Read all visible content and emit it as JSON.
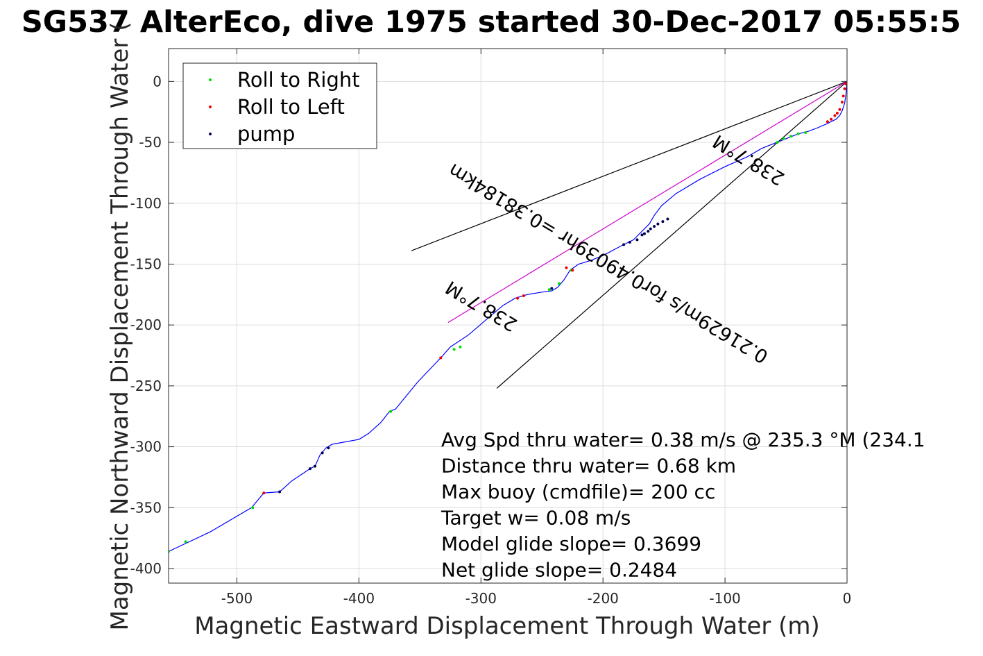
{
  "chart_data": {
    "type": "scatter",
    "title": "SG537 AlterEco, dive 1975 started 30-Dec-2017 05:55:5",
    "xlabel": "Magnetic Eastward Displacement Through Water (m)",
    "ylabel": "Magnetic Northward Displacement Through Water (",
    "xlim": [
      -556,
      0
    ],
    "ylim": [
      -412,
      27
    ],
    "grid": true,
    "x_ticks": [
      -500,
      -400,
      -300,
      -200,
      -100,
      0
    ],
    "y_ticks": [
      0,
      -50,
      -100,
      -150,
      -200,
      -250,
      -300,
      -350,
      -400
    ],
    "legend": {
      "placement": "top-left",
      "entries": [
        {
          "label": "Roll to Right",
          "color": "#00dd00"
        },
        {
          "label": "Roll to Left",
          "color": "#ee0000"
        },
        {
          "label": "pump",
          "color": "#000055"
        }
      ]
    },
    "track": {
      "color": "#0000ff",
      "points": [
        [
          0,
          0
        ],
        [
          -0.5,
          -6
        ],
        [
          -1,
          -12
        ],
        [
          -2,
          -18
        ],
        [
          -4,
          -24
        ],
        [
          -6,
          -28
        ],
        [
          -9,
          -31
        ],
        [
          -13,
          -33
        ],
        [
          -17,
          -35
        ],
        [
          -24,
          -38
        ],
        [
          -32,
          -41
        ],
        [
          -40,
          -43
        ],
        [
          -50,
          -47
        ],
        [
          -60,
          -51
        ],
        [
          -70,
          -55
        ],
        [
          -82,
          -62
        ],
        [
          -100,
          -70
        ],
        [
          -120,
          -80
        ],
        [
          -140,
          -92
        ],
        [
          -152,
          -102
        ],
        [
          -158,
          -110
        ],
        [
          -162,
          -117
        ],
        [
          -166,
          -121
        ],
        [
          -175,
          -130
        ],
        [
          -185,
          -135
        ],
        [
          -200,
          -143
        ],
        [
          -210,
          -147
        ],
        [
          -220,
          -150
        ],
        [
          -227,
          -155
        ],
        [
          -232,
          -163
        ],
        [
          -237,
          -169
        ],
        [
          -242,
          -172
        ],
        [
          -250,
          -173
        ],
        [
          -262,
          -175
        ],
        [
          -272,
          -178
        ],
        [
          -282,
          -184
        ],
        [
          -295,
          -195
        ],
        [
          -310,
          -208
        ],
        [
          -325,
          -218
        ],
        [
          -333,
          -227
        ],
        [
          -352,
          -247
        ],
        [
          -370,
          -269
        ],
        [
          -375,
          -271
        ],
        [
          -382,
          -280
        ],
        [
          -392,
          -289
        ],
        [
          -400,
          -294
        ],
        [
          -422,
          -298
        ],
        [
          -427,
          -301
        ],
        [
          -432,
          -307
        ],
        [
          -436,
          -316
        ],
        [
          -440,
          -318
        ],
        [
          -455,
          -328
        ],
        [
          -465,
          -337
        ],
        [
          -478,
          -338
        ],
        [
          -488,
          -350
        ],
        [
          -522,
          -370
        ],
        [
          -556,
          -386
        ]
      ]
    },
    "roll_right_points": [
      [
        -34,
        -42
      ],
      [
        -40,
        -43
      ],
      [
        -46,
        -45
      ],
      [
        -52,
        -47
      ],
      [
        -57,
        -50
      ],
      [
        -226,
        -155
      ],
      [
        -236,
        -166
      ],
      [
        -244,
        -171
      ],
      [
        -317,
        -218
      ],
      [
        -322,
        -220
      ],
      [
        -374,
        -271
      ],
      [
        -487,
        -350
      ],
      [
        -542,
        -378
      ],
      [
        -556,
        -386
      ]
    ],
    "roll_left_points": [
      [
        -1,
        -2
      ],
      [
        -2,
        -6
      ],
      [
        -3,
        -12
      ],
      [
        -4,
        -17
      ],
      [
        -6,
        -23
      ],
      [
        -8,
        -26
      ],
      [
        -10,
        -28
      ],
      [
        -13,
        -31
      ],
      [
        -16,
        -33
      ],
      [
        -225,
        -155
      ],
      [
        -230,
        -153
      ],
      [
        -265,
        -176
      ],
      [
        -270,
        -178
      ],
      [
        -333,
        -227
      ],
      [
        -478,
        -338
      ]
    ],
    "pump_points": [
      [
        -147,
        -113
      ],
      [
        -151,
        -115
      ],
      [
        -155,
        -117
      ],
      [
        -158,
        -119
      ],
      [
        -161,
        -121
      ],
      [
        -163,
        -123
      ],
      [
        -166,
        -125
      ],
      [
        -168,
        -126
      ],
      [
        -172,
        -130
      ],
      [
        -178,
        -132
      ],
      [
        -183,
        -134
      ],
      [
        -242,
        -170
      ],
      [
        -425,
        -301
      ],
      [
        -430,
        -305
      ],
      [
        -436,
        -316
      ],
      [
        -440,
        -318
      ],
      [
        -465,
        -337
      ]
    ],
    "glide_lines": [
      {
        "name": "upper",
        "color": "#000000",
        "x": [
          0,
          -357
        ],
        "y": [
          0,
          -139
        ]
      },
      {
        "name": "lower",
        "color": "#000000",
        "x": [
          0,
          -287
        ],
        "y": [
          0,
          -252
        ]
      },
      {
        "name": "mean",
        "color": "#cc00cc",
        "x": [
          0,
          -327
        ],
        "y": [
          0,
          -198
        ]
      }
    ],
    "rotated_labels": [
      {
        "text": "238.7°M",
        "x": -297,
        "y": -180,
        "angle": 31
      },
      {
        "text": "0.21629m/s for0.49039hr =0.38184km",
        "x": -193,
        "y": -145,
        "angle": 31
      },
      {
        "text": "238.7°M",
        "x": -78,
        "y": -60,
        "angle": 31
      }
    ],
    "annotations": [
      "Avg Spd thru water=  0.38 m/s @ 235.3 °M (234.1",
      "Distance thru water=  0.68 km",
      "Max buoy (cmdfile)= 200 cc",
      "Target w= 0.08 m/s",
      "Model glide slope= 0.3699",
      "Net glide slope= 0.2484"
    ]
  }
}
